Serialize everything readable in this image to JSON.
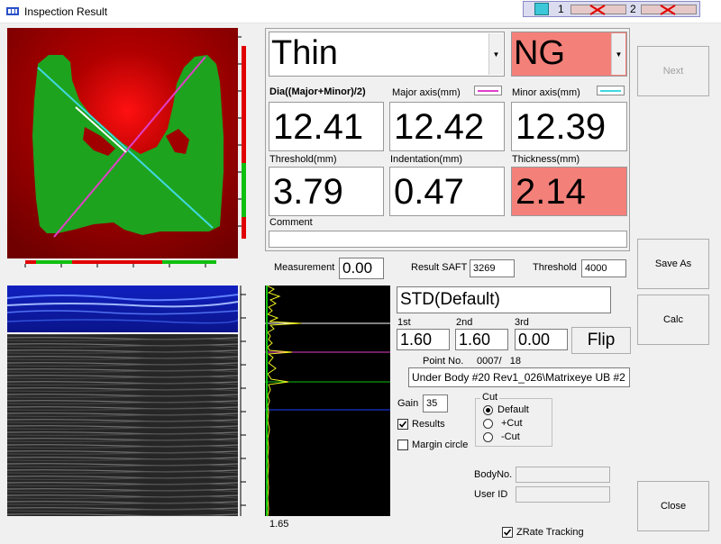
{
  "window": {
    "title": "Inspection Result"
  },
  "probes": {
    "p1": "1",
    "p2": "2"
  },
  "result": {
    "classification": "Thin",
    "judgement": "NG",
    "dia_label": "Dia((Major+Minor)/2)",
    "major_label": "Major axis(mm)",
    "minor_label": "Minor axis(mm)",
    "dia_value": "12.41",
    "major_value": "12.42",
    "minor_value": "12.39",
    "threshold_label": "Threshold(mm)",
    "indentation_label": "Indentation(mm)",
    "thickness_label": "Thickness(mm)",
    "threshold_value": "3.79",
    "indentation_value": "0.47",
    "thickness_value": "2.14",
    "comment_label": "Comment",
    "comment_value": ""
  },
  "colors": {
    "ng_bg": "#f4807a",
    "major_line": "#e040c8",
    "minor_line": "#40d8e0"
  },
  "measure": {
    "measurement_label": "Measurement",
    "measurement_value": "0.00",
    "saft_label": "Result SAFT",
    "saft_value": "3269",
    "threshold_label": "Threshold",
    "threshold_value": "4000"
  },
  "gates": {
    "name": "STD(Default)",
    "first_label": "1st",
    "first_value": "1.60",
    "second_label": "2nd",
    "second_value": "1.60",
    "third_label": "3rd",
    "third_value": "0.00",
    "flip_label": "Flip"
  },
  "point": {
    "label": "Point No.",
    "value": "0007/   18",
    "path": "Under Body #20 Rev1_026\\Matrixeye UB #2"
  },
  "options": {
    "gain_label": "Gain",
    "gain_value": "35",
    "results_label": "Results",
    "margin_label": "Margin circle",
    "cut_title": "Cut",
    "cut_default": "Default",
    "cut_plus": "+Cut",
    "cut_minus": "-Cut"
  },
  "ids": {
    "body_label": "BodyNo.",
    "user_label": "User ID"
  },
  "zrate": {
    "label": "ZRate Tracking"
  },
  "ascan": {
    "bottom_value": "1.65"
  },
  "buttons": {
    "next": "Next",
    "save_as": "Save As",
    "calc": "Calc",
    "close": "Close"
  }
}
